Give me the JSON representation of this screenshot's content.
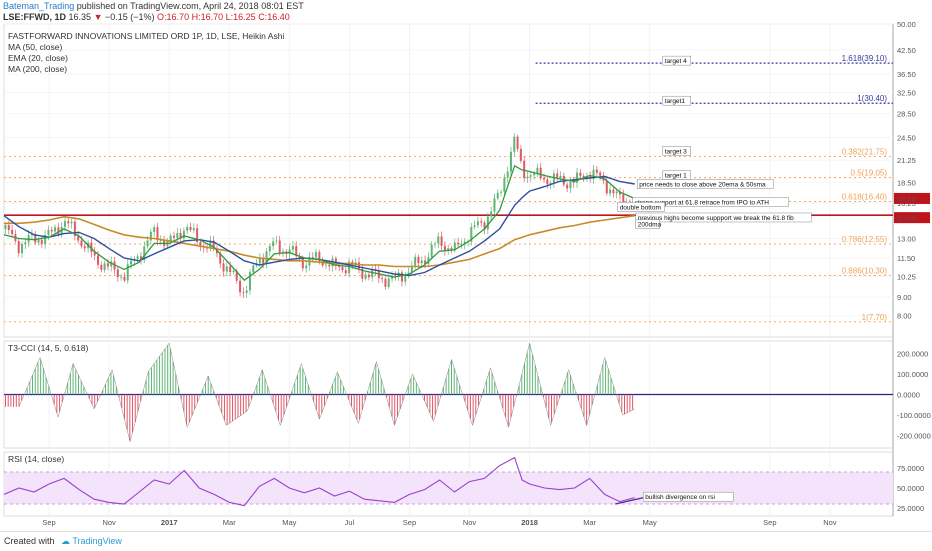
{
  "header": {
    "author": "Bateman_Trading",
    "published": "published on TradingView.com, April 24, 2018 08:01 EST",
    "symbol": "LSE:FFWD, 1D",
    "last": "16.35",
    "change": "−0.15 (−1%)",
    "ohlc_open": "O:16.70",
    "ohlc_high": "H:16.70",
    "ohlc_low": "L:16.25",
    "ohlc_close": "C:16.40"
  },
  "colors": {
    "bull": "#5fb573",
    "bear": "#e05766",
    "ma50": "#2e4fa0",
    "ema20": "#2e9a42",
    "ma200": "#c98a2a",
    "fib": "#f0a35a",
    "target": "#3a3aa0",
    "support": "#c0141c",
    "rsi_band": "#f3e3fb",
    "rsi_line": "#9b3fcf"
  },
  "chart_data": [
    {
      "type": "candlestick",
      "title": "FASTFORWARD INNOVATIONS LIMITED ORD 1P, 1D, LSE, Heikin Ashi",
      "legend": [
        "MA (50, close)",
        "EMA (20, close)",
        "MA (200, close)"
      ],
      "x_ticks": [
        "Sep",
        "Nov",
        "2017",
        "Mar",
        "May",
        "Jul",
        "Sep",
        "Nov",
        "2018",
        "Mar",
        "May",
        "Sep",
        "Nov"
      ],
      "x_tick_pos": [
        1.5,
        3.5,
        5.5,
        7.5,
        9.5,
        11.5,
        13.5,
        15.5,
        17.5,
        19.5,
        21.5,
        25.5,
        27.5
      ],
      "x_range": [
        0,
        29.6
      ],
      "y_ticks": [
        "50.00",
        "42.50",
        "36.50",
        "32.50",
        "28.50",
        "24.50",
        "21.25",
        "18.50",
        "16.25",
        "13.00",
        "11.50",
        "10.25",
        "9.00",
        "8.00"
      ],
      "y_tick_values": [
        50.0,
        42.5,
        36.5,
        32.5,
        28.5,
        24.5,
        21.25,
        18.5,
        16.25,
        13.0,
        11.5,
        10.25,
        9.0,
        8.0
      ],
      "y_range": [
        7.0,
        50.0
      ],
      "y_scale": "log",
      "fib_levels": [
        {
          "label": "1.618(39.10)",
          "value": 39.1,
          "kind": "target"
        },
        {
          "label": "1(30.40)",
          "value": 30.4,
          "kind": "target"
        },
        {
          "label": "0.382(21.75)",
          "value": 21.75,
          "kind": "fib"
        },
        {
          "label": "0.5(19.05)",
          "value": 19.05,
          "kind": "fib"
        },
        {
          "label": "0.618(16.40)",
          "value": 16.4,
          "kind": "fib"
        },
        {
          "label": "0.786(12.55)",
          "value": 12.55,
          "kind": "fib"
        },
        {
          "label": "0.886(10.30)",
          "value": 10.3,
          "kind": "fib"
        },
        {
          "label": "1(7.70)",
          "value": 7.7,
          "kind": "fib"
        }
      ],
      "support_line": 15.05,
      "price_badges": [
        {
          "label": "16.35",
          "value": 16.35
        },
        {
          "label": "15.05",
          "value": 15.05
        }
      ],
      "targets": [
        {
          "label": "target 4",
          "x": 22.0,
          "y": 39.1
        },
        {
          "label": "target1",
          "x": 22.0,
          "y": 30.4
        },
        {
          "label": "target 3",
          "x": 22.0,
          "y": 22.2
        },
        {
          "label": "target 1",
          "x": 22.0,
          "y": 19.05
        }
      ],
      "annotations": [
        {
          "label": "price needs to close above 20ema & 50sma",
          "x": 21.15,
          "y": 18.0
        },
        {
          "label": "strong support at 61.8 retrace from IPO to ATH",
          "x": 21.0,
          "y": 16.1
        },
        {
          "label": "double bottom",
          "x": 20.5,
          "y": 15.6
        },
        {
          "label": "previous highs become suppport we break the 61.8 fib",
          "x": 21.1,
          "y": 14.6
        },
        {
          "label": "200dma",
          "x": 21.1,
          "y": 14.0
        }
      ],
      "price_x": [
        0,
        0.5,
        1,
        1.5,
        2,
        2.5,
        3,
        3.5,
        4,
        4.5,
        5,
        5.5,
        6,
        6.5,
        7,
        7.5,
        8,
        8.5,
        9,
        9.5,
        10,
        10.5,
        11,
        11.5,
        12,
        12.5,
        13,
        13.5,
        14,
        14.5,
        15,
        15.5,
        16,
        16.5,
        17,
        17.25,
        17.5,
        18,
        18.5,
        19,
        19.5,
        20,
        20.5,
        21
      ],
      "price_y": [
        13.8,
        12.5,
        13.0,
        13.2,
        14.5,
        13.0,
        11.5,
        10.8,
        10.3,
        11.8,
        13.5,
        12.5,
        14.0,
        12.8,
        12.0,
        10.5,
        9.3,
        11.5,
        12.5,
        12.0,
        11.2,
        11.5,
        10.8,
        11.0,
        10.5,
        10.2,
        10.0,
        10.7,
        11.5,
        12.8,
        12.0,
        13.5,
        14.5,
        17.0,
        24.0,
        20.0,
        19.5,
        19.0,
        18.7,
        18.5,
        19.8,
        18.5,
        16.5,
        16.35
      ],
      "ema20_y": [
        13.3,
        13.0,
        12.9,
        13.1,
        13.8,
        13.2,
        12.0,
        11.2,
        10.7,
        11.2,
        12.6,
        12.6,
        13.2,
        12.9,
        12.3,
        11.1,
        10.0,
        10.7,
        11.8,
        11.9,
        11.5,
        11.4,
        11.0,
        10.9,
        10.6,
        10.4,
        10.2,
        10.4,
        11.0,
        12.0,
        12.1,
        12.8,
        13.8,
        15.5,
        20.5,
        20.0,
        19.8,
        19.3,
        18.9,
        18.6,
        19.3,
        18.9,
        17.4,
        16.7
      ],
      "ma50_y": [
        15.0,
        14.0,
        13.3,
        13.1,
        13.4,
        13.5,
        13.0,
        12.2,
        11.5,
        11.3,
        11.8,
        12.3,
        12.8,
        12.9,
        12.7,
        12.0,
        11.3,
        11.0,
        11.2,
        11.4,
        11.5,
        11.4,
        11.2,
        11.0,
        10.8,
        10.6,
        10.4,
        10.3,
        10.5,
        11.0,
        11.5,
        12.0,
        12.8,
        13.8,
        16.0,
        16.8,
        17.5,
        18.0,
        18.6,
        18.8,
        19.0,
        19.2,
        18.6,
        18.3
      ],
      "ma200_y": [
        14.3,
        14.3,
        14.4,
        14.6,
        14.9,
        14.7,
        14.2,
        13.7,
        13.3,
        13.1,
        13.0,
        12.8,
        12.6,
        12.4,
        12.2,
        12.0,
        11.7,
        11.5,
        11.4,
        11.3,
        11.3,
        11.2,
        11.1,
        11.1,
        11.0,
        11.0,
        10.9,
        10.9,
        10.9,
        11.0,
        11.2,
        11.4,
        11.8,
        12.2,
        12.9,
        13.1,
        13.3,
        13.6,
        13.9,
        14.1,
        14.4,
        14.6,
        14.8,
        15.0
      ]
    },
    {
      "type": "bar",
      "title": "T3-CCI (14, 5, 0.618)",
      "y_ticks": [
        "200.0000",
        "100.0000",
        "0.0000",
        "-100.0000",
        "-200.0000"
      ],
      "y_tick_values": [
        200,
        100,
        0,
        -100,
        -200
      ],
      "y_range": [
        -260,
        260
      ],
      "x": [
        0.5,
        1.2,
        1.8,
        2.3,
        3.0,
        3.6,
        4.2,
        4.8,
        5.5,
        6.1,
        6.8,
        7.4,
        8.1,
        8.6,
        9.2,
        9.9,
        10.5,
        11.1,
        11.8,
        12.4,
        13.0,
        13.6,
        14.3,
        14.9,
        15.6,
        16.2,
        16.8,
        17.5,
        18.2,
        18.8,
        19.4,
        20.0,
        20.6,
        21.0
      ],
      "values": [
        -60,
        180,
        -110,
        150,
        -70,
        120,
        -230,
        110,
        250,
        -160,
        90,
        -150,
        -80,
        120,
        -150,
        150,
        -120,
        110,
        -140,
        160,
        -150,
        100,
        -130,
        170,
        -150,
        130,
        -160,
        250,
        -150,
        120,
        -150,
        180,
        -100,
        -70
      ]
    },
    {
      "type": "line",
      "title": "RSI (14, close)",
      "y_ticks": [
        "75.0000",
        "50.0000",
        "25.0000"
      ],
      "y_tick_values": [
        75,
        50,
        25
      ],
      "y_range": [
        15,
        95
      ],
      "band": [
        30,
        70
      ],
      "annotation": "bullish divergence on rsi",
      "x": [
        0,
        0.5,
        1,
        1.5,
        2,
        2.5,
        3,
        3.5,
        4,
        4.5,
        5,
        5.5,
        6,
        6.5,
        7,
        7.5,
        8,
        8.5,
        9,
        9.5,
        10,
        10.5,
        11,
        11.5,
        12,
        12.5,
        13,
        13.5,
        14,
        14.5,
        15,
        15.5,
        16,
        16.5,
        17,
        17.25,
        17.5,
        18,
        18.5,
        19,
        19.5,
        20,
        20.5,
        21
      ],
      "values": [
        42,
        50,
        45,
        55,
        62,
        48,
        36,
        32,
        30,
        45,
        60,
        55,
        72,
        50,
        42,
        32,
        28,
        52,
        62,
        50,
        44,
        50,
        40,
        46,
        36,
        34,
        32,
        42,
        48,
        60,
        45,
        58,
        62,
        78,
        88,
        60,
        55,
        50,
        48,
        50,
        62,
        42,
        33,
        38
      ]
    }
  ],
  "footer": {
    "created_with": "Created with",
    "brand": "TradingView"
  }
}
